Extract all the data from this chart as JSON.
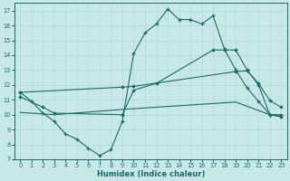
{
  "xlabel": "Humidex (Indice chaleur)",
  "background_color": "#c8e8e8",
  "line_color": "#1a6b60",
  "grid_color": "#b0d8d8",
  "xlim": [
    -0.5,
    23.5
  ],
  "ylim": [
    7,
    17.5
  ],
  "xticks": [
    0,
    1,
    2,
    3,
    4,
    5,
    6,
    7,
    8,
    9,
    10,
    11,
    12,
    13,
    14,
    15,
    16,
    17,
    18,
    19,
    20,
    21,
    22,
    23
  ],
  "yticks": [
    7,
    8,
    9,
    10,
    11,
    12,
    13,
    14,
    15,
    16,
    17
  ],
  "line1_x": [
    0,
    1,
    2,
    3,
    4,
    5,
    6,
    7,
    8,
    9,
    10,
    11,
    12,
    13,
    14,
    15,
    16,
    17,
    18,
    19,
    20,
    21,
    22,
    23
  ],
  "line1_y": [
    11.5,
    10.9,
    10.1,
    9.55,
    8.7,
    8.35,
    7.75,
    7.25,
    7.65,
    9.55,
    14.1,
    15.5,
    16.1,
    17.1,
    16.4,
    16.4,
    16.1,
    16.65,
    14.4,
    13.0,
    11.8,
    10.9,
    10.0,
    10.0
  ],
  "line2_x": [
    0,
    2,
    3,
    9,
    10,
    12,
    17,
    18,
    19,
    20,
    21,
    22,
    23
  ],
  "line2_y": [
    11.2,
    10.5,
    10.1,
    10.0,
    11.65,
    12.1,
    14.35,
    14.35,
    14.35,
    13.0,
    12.0,
    10.0,
    9.85
  ],
  "line3_x": [
    0,
    9,
    10,
    19,
    20,
    21,
    22,
    23
  ],
  "line3_y": [
    11.5,
    11.85,
    11.9,
    12.9,
    12.95,
    12.1,
    10.95,
    10.5
  ],
  "line4_x": [
    0,
    3,
    9,
    19,
    22,
    23
  ],
  "line4_y": [
    10.15,
    10.0,
    10.35,
    10.85,
    10.0,
    9.9
  ]
}
